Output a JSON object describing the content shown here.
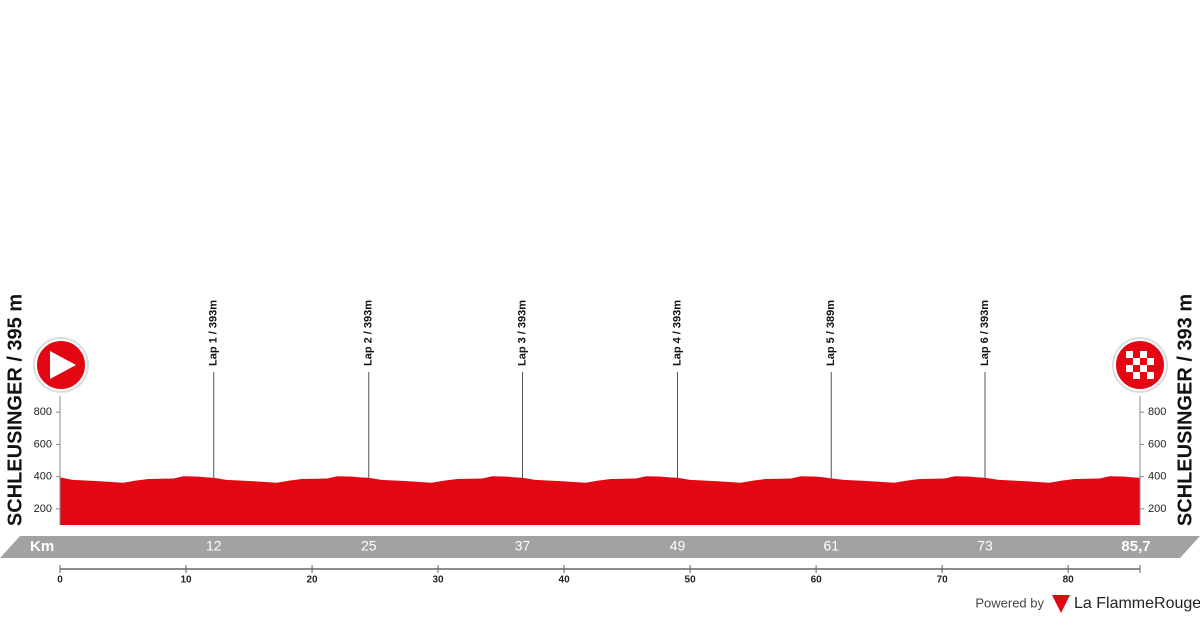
{
  "chart_data": {
    "type": "area",
    "start_label": "SCHLEUSINGER / 395 m",
    "finish_label": "SCHLEUSINGER / 393 m",
    "xlabel": "Km",
    "color": "#e30613",
    "x": [
      0,
      1,
      3,
      5,
      6,
      7,
      9,
      9.8,
      11,
      11.6,
      12.2,
      13.2,
      15.2,
      17.2,
      18.2,
      19.2,
      21.2,
      22.0,
      23.2,
      23.8,
      24.5,
      25.5,
      27.5,
      29.5,
      30.5,
      31.5,
      33.5,
      34.3,
      35.5,
      36.1,
      36.7,
      37.7,
      39.7,
      41.7,
      42.7,
      43.7,
      45.7,
      46.5,
      47.7,
      48.3,
      49.0,
      50.0,
      52.0,
      54.0,
      55.0,
      56.0,
      58.0,
      58.8,
      60.0,
      60.6,
      61.2,
      62.2,
      64.2,
      66.2,
      67.2,
      68.2,
      70.2,
      71.0,
      72.2,
      72.8,
      73.4,
      74.5,
      76.5,
      78.5,
      79.5,
      80.5,
      82.5,
      83.3,
      84.5,
      85.1,
      85.7
    ],
    "values": [
      395,
      380,
      372,
      362,
      375,
      385,
      388,
      402,
      400,
      395,
      393,
      380,
      372,
      362,
      375,
      385,
      388,
      402,
      400,
      395,
      393,
      380,
      372,
      362,
      375,
      385,
      388,
      402,
      400,
      395,
      393,
      380,
      372,
      362,
      375,
      385,
      388,
      402,
      400,
      395,
      393,
      380,
      372,
      362,
      375,
      385,
      388,
      402,
      400,
      395,
      389,
      380,
      372,
      362,
      375,
      385,
      388,
      402,
      400,
      395,
      393,
      380,
      372,
      362,
      375,
      385,
      388,
      402,
      400,
      395,
      393
    ],
    "xlim": [
      0,
      85.7
    ],
    "xticks": [
      0,
      10,
      20,
      30,
      40,
      50,
      60,
      70,
      80
    ],
    "ylim": [
      100,
      900
    ],
    "yticks": [
      200,
      400,
      600,
      800
    ],
    "laps": [
      {
        "label": "Lap 1 / 393m",
        "km": {
          "value": 12.2,
          "label": "12"
        }
      },
      {
        "label": "Lap 2 / 393m",
        "km": {
          "value": 24.5,
          "label": "25"
        }
      },
      {
        "label": "Lap 3 / 393m",
        "km": {
          "value": 36.7,
          "label": "37"
        }
      },
      {
        "label": "Lap 4 / 393m",
        "km": {
          "value": 49.0,
          "label": "49"
        }
      },
      {
        "label": "Lap 5 / 389m",
        "km": {
          "value": 61.2,
          "label": "61"
        }
      },
      {
        "label": "Lap 6 / 393m",
        "km": {
          "value": 73.4,
          "label": "73"
        }
      }
    ],
    "finish": {
      "value": 85.7,
      "label": "85,7"
    }
  },
  "footer": {
    "powered_by": "Powered by",
    "brand": "La FlammeRouge"
  }
}
